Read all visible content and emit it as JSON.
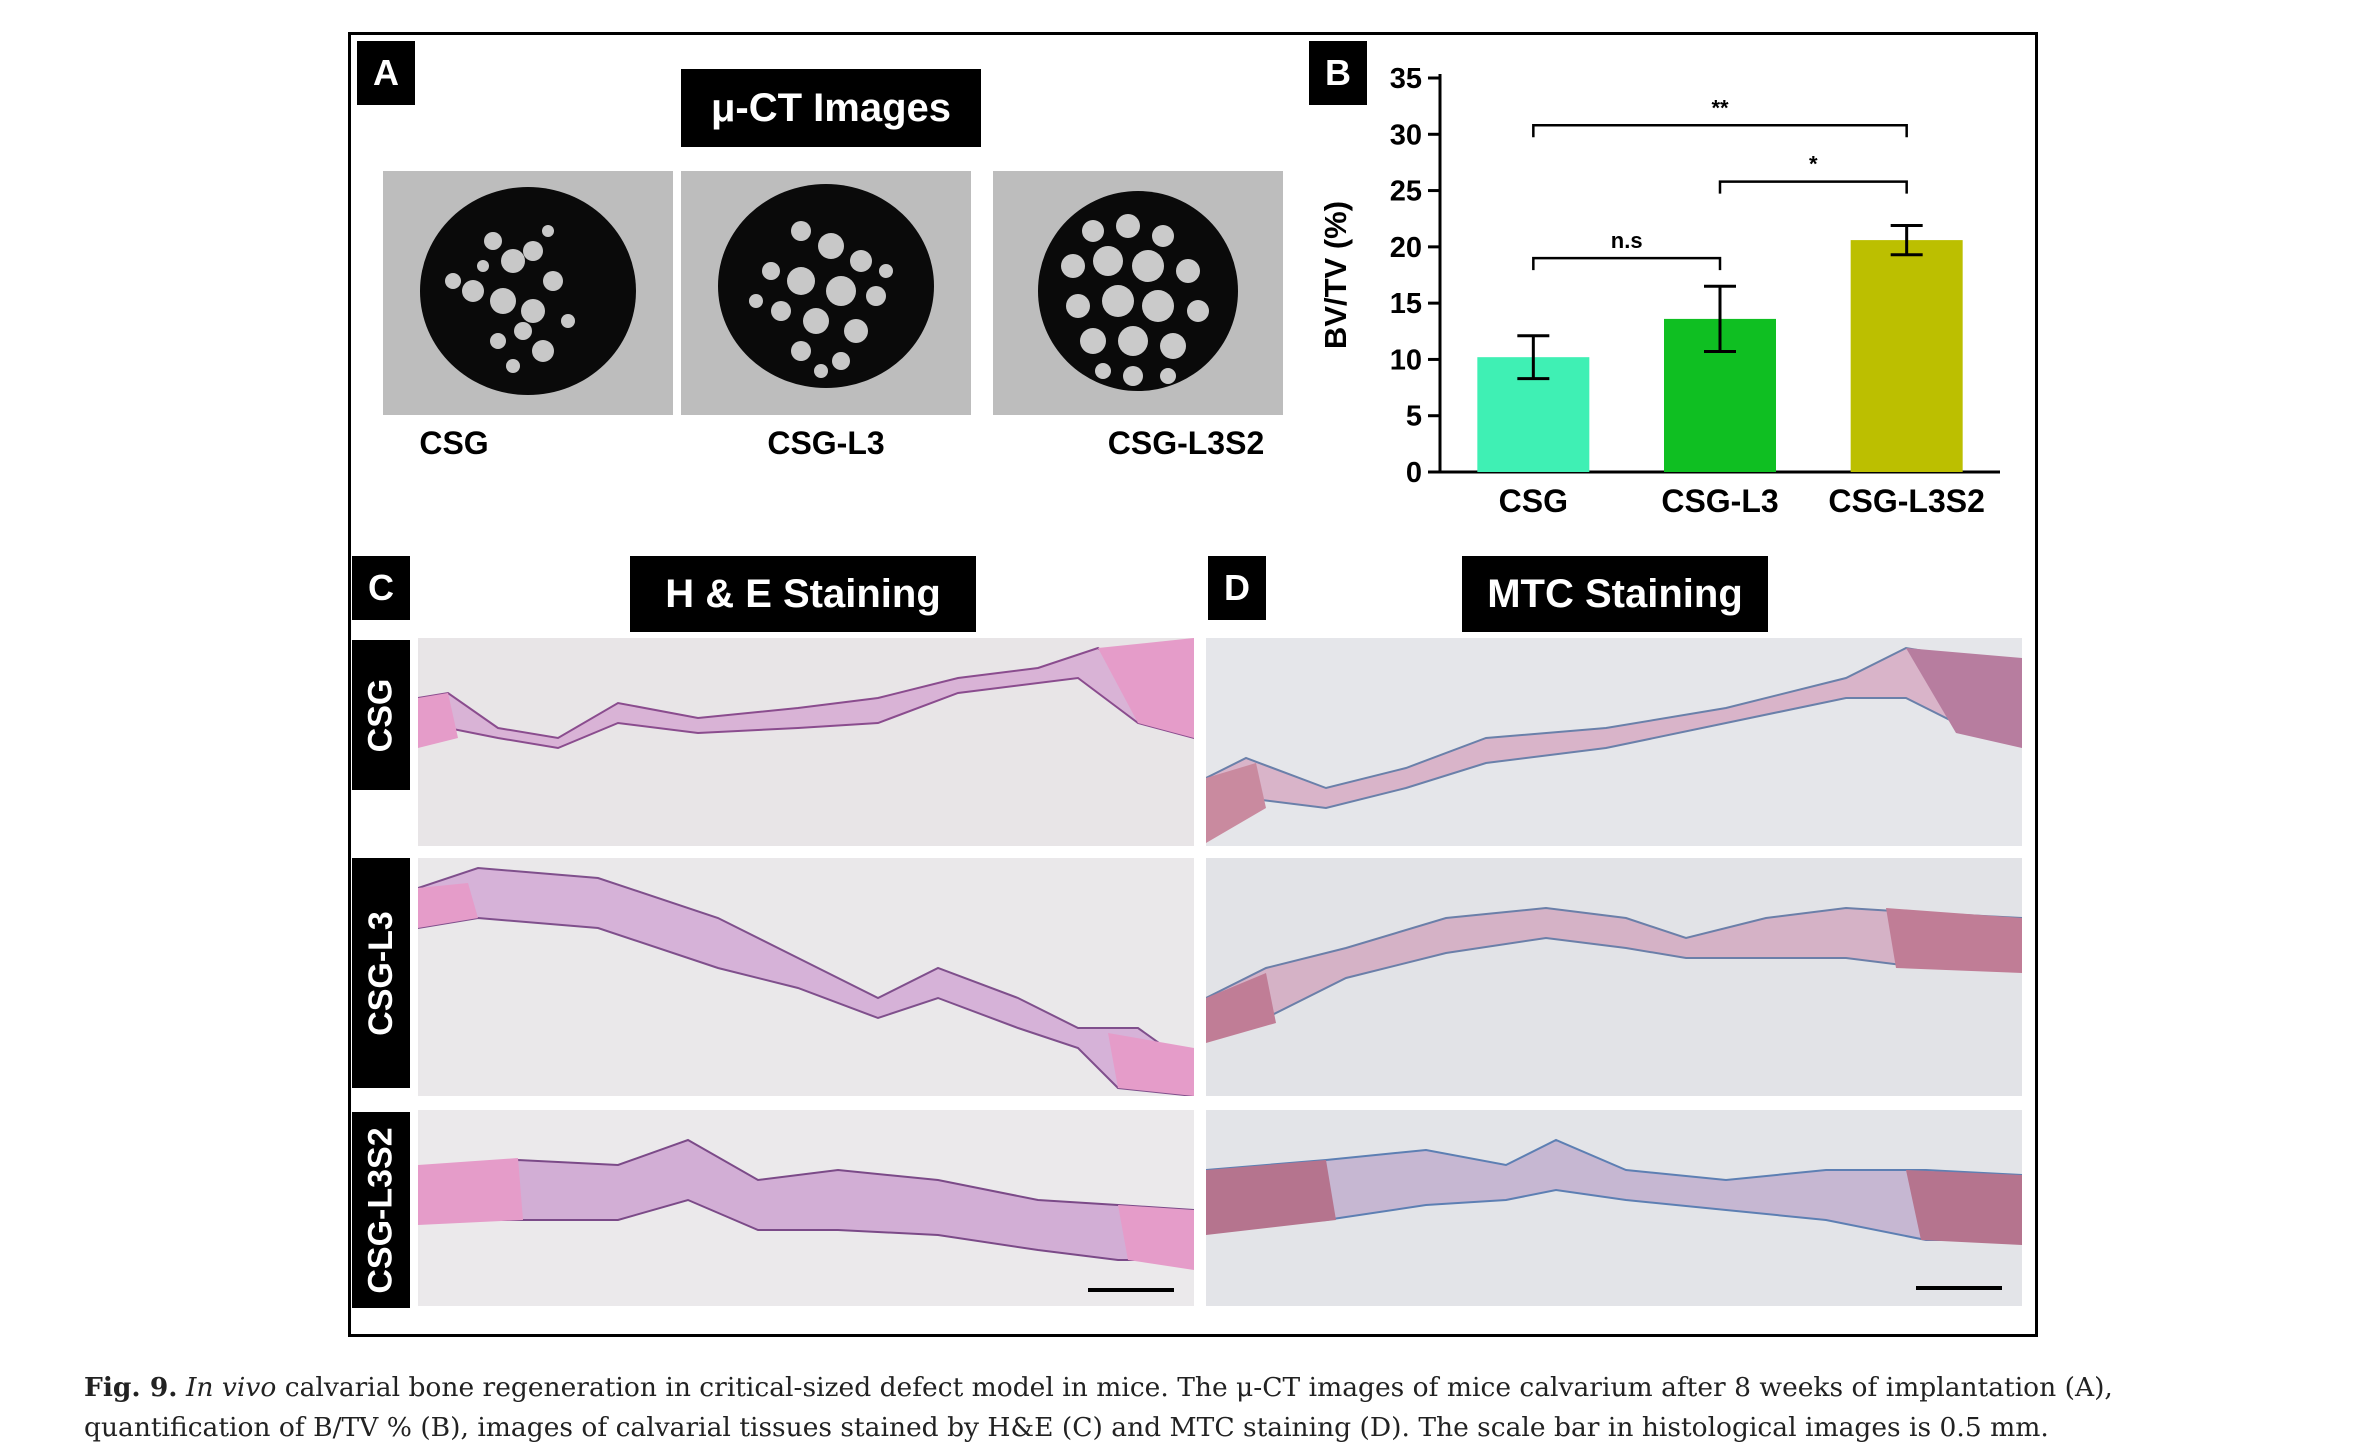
{
  "panels": {
    "a": {
      "letter": "A",
      "title": "μ-CT Images",
      "labels": [
        "CSG",
        "CSG-L3",
        "CSG-L3S2"
      ]
    },
    "b": {
      "letter": "B"
    },
    "c": {
      "letter": "C",
      "title": "H & E Staining",
      "row_labels": [
        "CSG",
        "CSG-L3",
        "CSG-L3S2"
      ]
    },
    "d": {
      "letter": "D",
      "title": "MTC Staining"
    }
  },
  "chart_data": {
    "type": "bar",
    "categories": [
      "CSG",
      "CSG-L3",
      "CSG-L3S2"
    ],
    "values": [
      10.2,
      13.6,
      20.6
    ],
    "errors": [
      1.9,
      2.9,
      1.3
    ],
    "colors": [
      "#3ff0b4",
      "#0fbf22",
      "#bcbf00"
    ],
    "ylabel": "BV/TV (%)",
    "ylim": [
      0,
      35
    ],
    "yticks": [
      0,
      5,
      10,
      15,
      20,
      25,
      30,
      35
    ],
    "comparisons": [
      {
        "from": 0,
        "to": 2,
        "label": "**"
      },
      {
        "from": 1,
        "to": 2,
        "label": "*"
      },
      {
        "from": 0,
        "to": 1,
        "label": "n.s"
      }
    ]
  },
  "caption": {
    "fig_no": "Fig. 9.",
    "italic": "In vivo",
    "text": " calvarial bone regeneration in critical-sized defect model in mice. The μ-CT images of mice calvarium after 8 weeks of implantation (A), quantification of B/TV % (B), images of calvarial tissues stained by H&E (C) and MTC staining (D). The scale bar in histological images is 0.5 mm."
  }
}
